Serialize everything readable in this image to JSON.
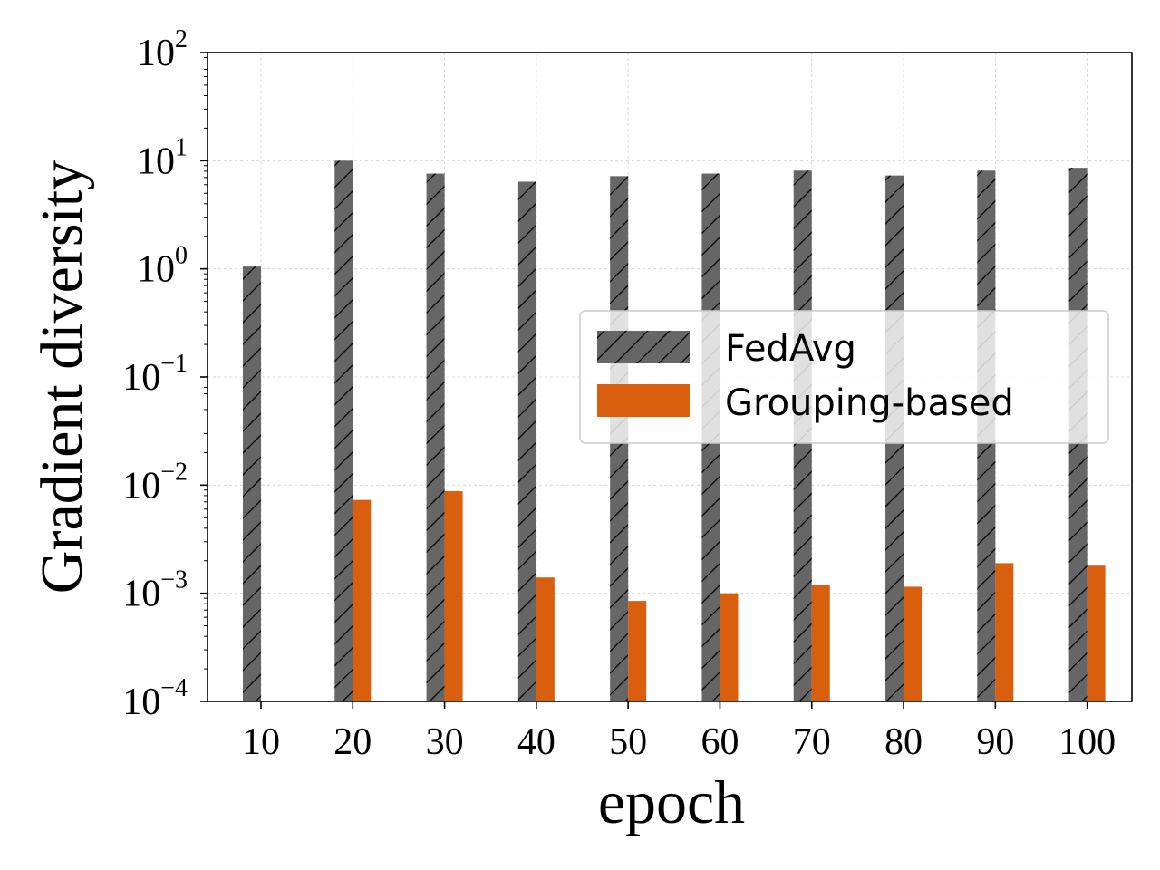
{
  "chart_data": {
    "type": "bar",
    "title": "",
    "xlabel": "epoch",
    "ylabel": "Gradient diversity",
    "yscale": "log",
    "ylim": [
      0.0001,
      100
    ],
    "y_ticks": [
      {
        "base": "10",
        "exp": "−4",
        "value": 0.0001
      },
      {
        "base": "10",
        "exp": "−3",
        "value": 0.001
      },
      {
        "base": "10",
        "exp": "−2",
        "value": 0.01
      },
      {
        "base": "10",
        "exp": "−1",
        "value": 0.1
      },
      {
        "base": "10",
        "exp": "0",
        "value": 1
      },
      {
        "base": "10",
        "exp": "1",
        "value": 10
      },
      {
        "base": "10",
        "exp": "2",
        "value": 100
      }
    ],
    "categories": [
      "10",
      "20",
      "30",
      "40",
      "50",
      "60",
      "70",
      "80",
      "90",
      "100"
    ],
    "series": [
      {
        "name": "FedAvg",
        "color": "#666666",
        "hatch": "/",
        "values": [
          1.05,
          10.0,
          7.6,
          6.4,
          7.2,
          7.6,
          8.1,
          7.3,
          8.1,
          8.6
        ]
      },
      {
        "name": "Grouping-based",
        "color": "#d95f0e",
        "hatch": "",
        "values": [
          null,
          0.0073,
          0.0088,
          0.0014,
          0.00085,
          0.001,
          0.0012,
          0.00115,
          0.0019,
          0.0018
        ]
      }
    ],
    "legend": {
      "position": "center-right"
    },
    "grid": true
  }
}
